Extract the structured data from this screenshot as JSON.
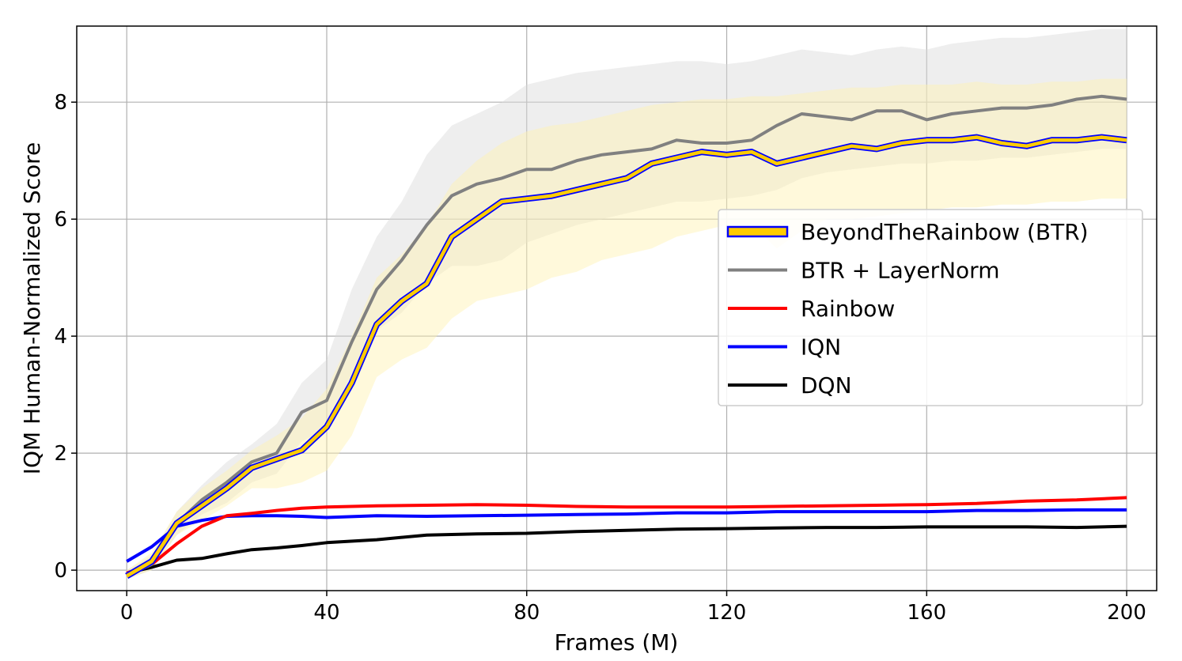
{
  "chart_data": {
    "type": "line",
    "title": "",
    "xlabel": "Frames (M)",
    "ylabel": "IQM Human-Normalized Score",
    "xlim": [
      -10,
      206
    ],
    "ylim": [
      -0.35,
      9.3
    ],
    "xticks": [
      0,
      40,
      80,
      120,
      160,
      200
    ],
    "yticks": [
      0,
      2,
      4,
      6,
      8
    ],
    "xtick_labels": [
      "0",
      "40",
      "80",
      "120",
      "160",
      "200"
    ],
    "ytick_labels": [
      "0",
      "2",
      "4",
      "6",
      "8"
    ],
    "grid": true,
    "legend_position": "center-right",
    "series": [
      {
        "name": "BTR + LayerNorm",
        "color": "#808080",
        "band_color": "#d9d9d9",
        "x": [
          0,
          5,
          10,
          15,
          20,
          25,
          30,
          35,
          40,
          45,
          50,
          55,
          60,
          65,
          70,
          75,
          80,
          85,
          90,
          95,
          100,
          105,
          110,
          115,
          120,
          125,
          130,
          135,
          140,
          145,
          150,
          155,
          160,
          165,
          170,
          175,
          180,
          185,
          190,
          195,
          200
        ],
        "values": [
          -0.1,
          0.1,
          0.8,
          1.2,
          1.5,
          1.85,
          2.0,
          2.7,
          2.9,
          3.9,
          4.8,
          5.3,
          5.9,
          6.4,
          6.6,
          6.7,
          6.85,
          6.85,
          7.0,
          7.1,
          7.15,
          7.2,
          7.35,
          7.3,
          7.3,
          7.35,
          7.6,
          7.8,
          7.75,
          7.7,
          7.85,
          7.85,
          7.7,
          7.8,
          7.85,
          7.9,
          7.9,
          7.95,
          8.05,
          8.1,
          8.05
        ],
        "lower": [
          -0.15,
          0.0,
          0.6,
          0.95,
          1.15,
          1.5,
          1.65,
          2.2,
          2.4,
          3.3,
          4.1,
          4.4,
          4.9,
          5.2,
          5.2,
          5.3,
          5.6,
          5.75,
          5.9,
          6.0,
          6.1,
          6.2,
          6.3,
          6.3,
          6.35,
          6.4,
          6.5,
          6.7,
          6.8,
          6.85,
          6.9,
          6.95,
          6.95,
          7.0,
          7.0,
          7.05,
          7.05,
          7.1,
          7.15,
          7.2,
          7.2
        ],
        "upper": [
          0.0,
          0.25,
          1.0,
          1.45,
          1.85,
          2.15,
          2.5,
          3.2,
          3.6,
          4.8,
          5.7,
          6.3,
          7.1,
          7.6,
          7.8,
          8.0,
          8.3,
          8.4,
          8.5,
          8.55,
          8.6,
          8.65,
          8.7,
          8.7,
          8.65,
          8.7,
          8.8,
          8.9,
          8.85,
          8.8,
          8.9,
          8.95,
          8.9,
          9.0,
          9.05,
          9.1,
          9.1,
          9.15,
          9.2,
          9.25,
          9.25
        ]
      },
      {
        "name": "BeyondTheRainbow (BTR)",
        "color": "#ffcc00",
        "outline_color": "#0000ff",
        "band_color": "#fff2b0",
        "x": [
          0,
          5,
          10,
          15,
          20,
          25,
          30,
          35,
          40,
          45,
          50,
          55,
          60,
          65,
          70,
          75,
          80,
          85,
          90,
          95,
          100,
          105,
          110,
          115,
          120,
          125,
          130,
          135,
          140,
          145,
          150,
          155,
          160,
          165,
          170,
          175,
          180,
          185,
          190,
          195,
          200
        ],
        "values": [
          -0.1,
          0.15,
          0.8,
          1.1,
          1.4,
          1.75,
          1.9,
          2.05,
          2.45,
          3.2,
          4.2,
          4.6,
          4.9,
          5.7,
          6.0,
          6.3,
          6.35,
          6.4,
          6.5,
          6.6,
          6.7,
          6.95,
          7.05,
          7.15,
          7.1,
          7.15,
          6.95,
          7.05,
          7.15,
          7.25,
          7.2,
          7.3,
          7.35,
          7.35,
          7.4,
          7.3,
          7.25,
          7.35,
          7.35,
          7.4,
          7.35
        ],
        "lower": [
          -0.15,
          0.0,
          0.6,
          0.85,
          1.1,
          1.4,
          1.4,
          1.5,
          1.7,
          2.3,
          3.3,
          3.6,
          3.8,
          4.3,
          4.6,
          4.7,
          4.8,
          5.0,
          5.1,
          5.3,
          5.4,
          5.5,
          5.7,
          5.8,
          5.9,
          5.9,
          5.5,
          5.8,
          6.0,
          6.0,
          6.05,
          6.1,
          6.15,
          6.2,
          6.2,
          6.25,
          6.25,
          6.3,
          6.3,
          6.35,
          6.35
        ],
        "upper": [
          0.0,
          0.3,
          1.0,
          1.4,
          1.7,
          2.05,
          2.3,
          2.6,
          3.1,
          4.0,
          5.0,
          5.4,
          5.9,
          6.6,
          7.0,
          7.3,
          7.5,
          7.6,
          7.65,
          7.75,
          7.85,
          7.95,
          8.0,
          8.05,
          8.05,
          8.1,
          8.1,
          8.15,
          8.2,
          8.25,
          8.25,
          8.3,
          8.3,
          8.3,
          8.35,
          8.3,
          8.3,
          8.35,
          8.35,
          8.4,
          8.4
        ]
      },
      {
        "name": "Rainbow",
        "color": "#ff0000",
        "x": [
          0,
          5,
          10,
          15,
          20,
          25,
          30,
          35,
          40,
          50,
          60,
          70,
          80,
          90,
          100,
          110,
          120,
          130,
          140,
          150,
          160,
          170,
          180,
          190,
          200
        ],
        "values": [
          -0.05,
          0.1,
          0.45,
          0.75,
          0.93,
          0.97,
          1.02,
          1.06,
          1.08,
          1.1,
          1.11,
          1.12,
          1.11,
          1.09,
          1.08,
          1.08,
          1.08,
          1.09,
          1.1,
          1.11,
          1.12,
          1.14,
          1.18,
          1.2,
          1.24
        ]
      },
      {
        "name": "IQN",
        "color": "#0000ff",
        "x": [
          0,
          5,
          10,
          15,
          20,
          25,
          30,
          35,
          40,
          50,
          60,
          70,
          80,
          90,
          100,
          110,
          120,
          130,
          140,
          150,
          160,
          170,
          180,
          190,
          200
        ],
        "values": [
          0.15,
          0.4,
          0.75,
          0.85,
          0.92,
          0.93,
          0.93,
          0.92,
          0.9,
          0.93,
          0.92,
          0.93,
          0.94,
          0.95,
          0.96,
          0.98,
          0.98,
          1.0,
          1.0,
          1.0,
          1.0,
          1.02,
          1.02,
          1.03,
          1.03
        ]
      },
      {
        "name": "DQN",
        "color": "#000000",
        "x": [
          0,
          5,
          10,
          15,
          20,
          25,
          30,
          35,
          40,
          50,
          60,
          70,
          80,
          90,
          100,
          110,
          120,
          130,
          140,
          150,
          160,
          170,
          180,
          190,
          200
        ],
        "values": [
          -0.05,
          0.05,
          0.17,
          0.2,
          0.28,
          0.35,
          0.38,
          0.42,
          0.47,
          0.52,
          0.6,
          0.62,
          0.63,
          0.66,
          0.68,
          0.7,
          0.71,
          0.72,
          0.73,
          0.73,
          0.74,
          0.74,
          0.74,
          0.73,
          0.75
        ]
      }
    ],
    "legend": [
      {
        "label": "BeyondTheRainbow (BTR)",
        "color": "#ffcc00",
        "outline": "#0000ff"
      },
      {
        "label": "BTR + LayerNorm",
        "color": "#808080"
      },
      {
        "label": "Rainbow",
        "color": "#ff0000"
      },
      {
        "label": "IQN",
        "color": "#0000ff"
      },
      {
        "label": "DQN",
        "color": "#000000"
      }
    ]
  }
}
